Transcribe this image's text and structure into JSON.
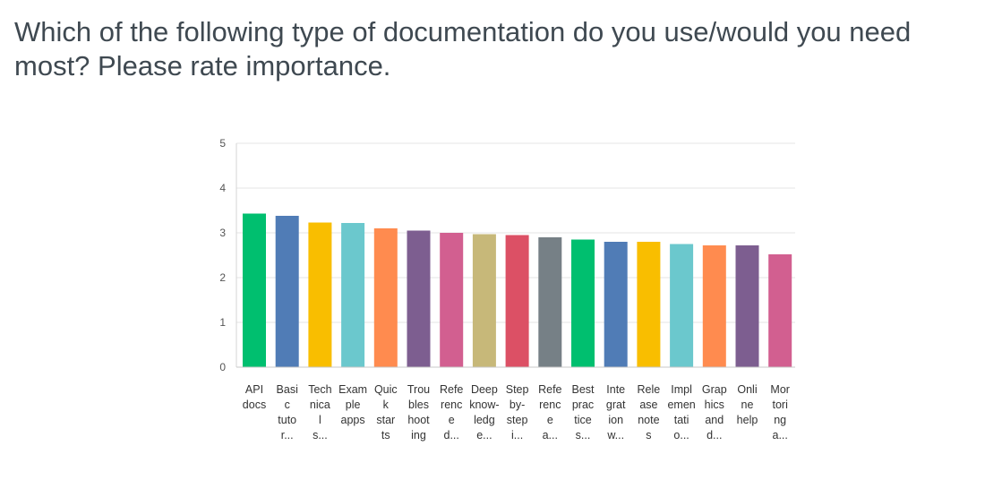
{
  "question": {
    "line1": "Which of the following type of documentation do you use/would you need",
    "line2": "most? Please rate importance."
  },
  "chart_data": {
    "type": "bar",
    "title": "Which of the following type of documentation do you use/would you need most? Please rate importance.",
    "xlabel": "",
    "ylabel": "",
    "ylim": [
      0,
      5
    ],
    "yticks": [
      0,
      1,
      2,
      3,
      4,
      5
    ],
    "grid": true,
    "legend": "none",
    "categories": [
      {
        "label_lines": [
          "API",
          "docs"
        ],
        "value": 3.43,
        "color": "#00bf6f"
      },
      {
        "label_lines": [
          "Basi",
          "c",
          "tuto",
          "r..."
        ],
        "value": 3.38,
        "color": "#507cb6"
      },
      {
        "label_lines": [
          "Tech",
          "nica",
          "l",
          "s..."
        ],
        "value": 3.23,
        "color": "#f9be00"
      },
      {
        "label_lines": [
          "Exam",
          "ple",
          "apps"
        ],
        "value": 3.22,
        "color": "#6bc8cd"
      },
      {
        "label_lines": [
          "Quic",
          "k",
          "star",
          "ts"
        ],
        "value": 3.1,
        "color": "#ff8b4f"
      },
      {
        "label_lines": [
          "Trou",
          "bles",
          "hoot",
          "ing"
        ],
        "value": 3.05,
        "color": "#7d5e90"
      },
      {
        "label_lines": [
          "Refe",
          "renc",
          "e",
          "d..."
        ],
        "value": 3.0,
        "color": "#d25f90"
      },
      {
        "label_lines": [
          "Deep",
          "know-",
          "ledg",
          "e..."
        ],
        "value": 2.97,
        "color": "#c7b879"
      },
      {
        "label_lines": [
          "Step",
          "by-",
          "step",
          "i..."
        ],
        "value": 2.95,
        "color": "#dc5065"
      },
      {
        "label_lines": [
          "Refe",
          "renc",
          "e",
          "a..."
        ],
        "value": 2.9,
        "color": "#768086"
      },
      {
        "label_lines": [
          "Best",
          "prac",
          "tice",
          "s..."
        ],
        "value": 2.85,
        "color": "#00bf6f"
      },
      {
        "label_lines": [
          "Inte",
          "grat",
          "ion",
          "w..."
        ],
        "value": 2.8,
        "color": "#507cb6"
      },
      {
        "label_lines": [
          "Rele",
          "ase",
          "note",
          "s"
        ],
        "value": 2.8,
        "color": "#f9be00"
      },
      {
        "label_lines": [
          "Impl",
          "emen",
          "tati",
          "o..."
        ],
        "value": 2.75,
        "color": "#6bc8cd"
      },
      {
        "label_lines": [
          "Grap",
          "hics",
          "and",
          "d..."
        ],
        "value": 2.72,
        "color": "#ff8b4f"
      },
      {
        "label_lines": [
          "Onli",
          "ne",
          "help"
        ],
        "value": 2.72,
        "color": "#7d5e90"
      },
      {
        "label_lines": [
          "Mor",
          "tori",
          "ng",
          "a..."
        ],
        "value": 2.52,
        "color": "#d25f90"
      }
    ]
  }
}
